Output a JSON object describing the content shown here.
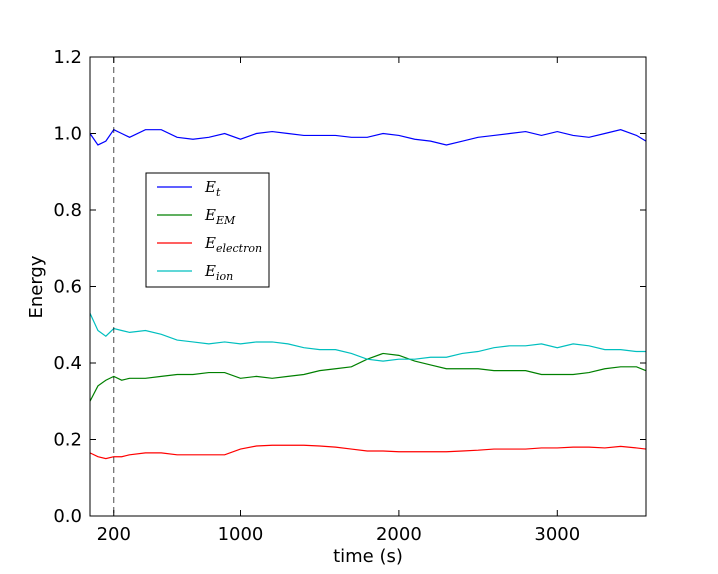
{
  "chart_data": {
    "type": "line",
    "xlabel": "time (s)",
    "ylabel": "Energy",
    "x": [
      50,
      100,
      150,
      200,
      250,
      300,
      400,
      500,
      600,
      700,
      800,
      900,
      1000,
      1100,
      1200,
      1300,
      1400,
      1500,
      1600,
      1700,
      1800,
      1900,
      2000,
      2100,
      2200,
      2300,
      2400,
      2500,
      2600,
      2700,
      2800,
      2900,
      3000,
      3100,
      3200,
      3300,
      3400,
      3500,
      3560
    ],
    "series": [
      {
        "name": "E_t",
        "color": "#0000ff",
        "values": [
          1.0,
          0.97,
          0.98,
          1.01,
          1.0,
          0.99,
          1.01,
          1.01,
          0.99,
          0.985,
          0.99,
          1.0,
          0.985,
          1.0,
          1.005,
          1.0,
          0.995,
          0.995,
          0.995,
          0.99,
          0.99,
          1.0,
          0.995,
          0.985,
          0.98,
          0.97,
          0.98,
          0.99,
          0.995,
          1.0,
          1.005,
          0.995,
          1.005,
          0.995,
          0.99,
          1.0,
          1.01,
          0.995,
          0.98
        ]
      },
      {
        "name": "E_EM",
        "color": "#008000",
        "values": [
          0.3,
          0.34,
          0.355,
          0.365,
          0.355,
          0.36,
          0.36,
          0.365,
          0.37,
          0.37,
          0.375,
          0.375,
          0.36,
          0.365,
          0.36,
          0.365,
          0.37,
          0.38,
          0.385,
          0.39,
          0.41,
          0.425,
          0.42,
          0.405,
          0.395,
          0.385,
          0.385,
          0.385,
          0.38,
          0.38,
          0.38,
          0.37,
          0.37,
          0.37,
          0.375,
          0.385,
          0.39,
          0.39,
          0.38
        ]
      },
      {
        "name": "E_electron",
        "color": "#ff0000",
        "values": [
          0.165,
          0.155,
          0.15,
          0.155,
          0.155,
          0.16,
          0.165,
          0.165,
          0.16,
          0.16,
          0.16,
          0.16,
          0.175,
          0.183,
          0.185,
          0.185,
          0.185,
          0.183,
          0.18,
          0.175,
          0.17,
          0.17,
          0.168,
          0.168,
          0.168,
          0.168,
          0.17,
          0.172,
          0.175,
          0.175,
          0.175,
          0.178,
          0.178,
          0.18,
          0.18,
          0.178,
          0.182,
          0.178,
          0.175
        ]
      },
      {
        "name": "E_ion",
        "color": "#00bfbf",
        "values": [
          0.53,
          0.485,
          0.47,
          0.49,
          0.485,
          0.48,
          0.485,
          0.475,
          0.46,
          0.455,
          0.45,
          0.455,
          0.45,
          0.455,
          0.455,
          0.45,
          0.44,
          0.435,
          0.435,
          0.425,
          0.41,
          0.405,
          0.41,
          0.41,
          0.415,
          0.415,
          0.425,
          0.43,
          0.44,
          0.445,
          0.445,
          0.45,
          0.44,
          0.45,
          0.445,
          0.435,
          0.435,
          0.43,
          0.43
        ]
      }
    ],
    "vline": 200,
    "xlim": [
      50,
      3560
    ],
    "xticks": [
      200,
      1000,
      2000,
      3000
    ],
    "ylim": [
      0,
      1.2
    ],
    "yticks": [
      {
        "value": 0,
        "label": "0.0"
      },
      0.2,
      0.4,
      0.6,
      0.8,
      {
        "value": 1,
        "label": "1.0"
      },
      1.2
    ]
  }
}
